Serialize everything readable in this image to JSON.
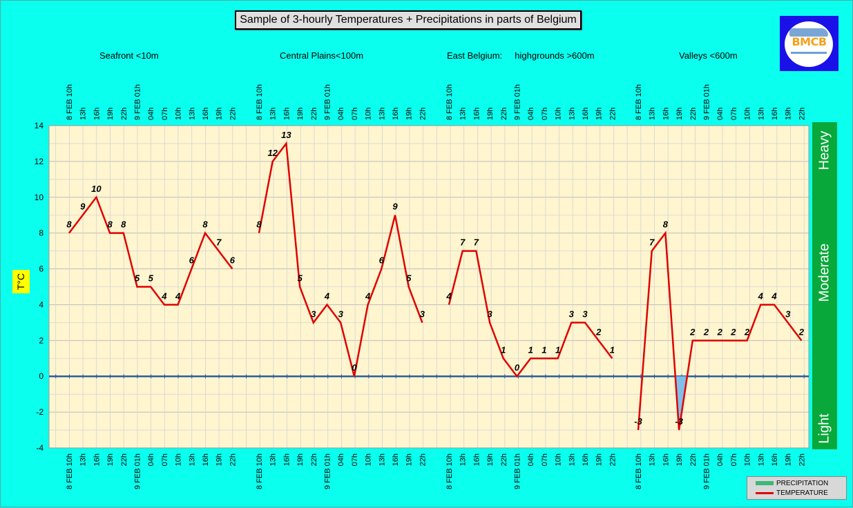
{
  "title": "Sample of 3-hourly Temperatures + Precipitations in parts of Belgium",
  "regions": [
    {
      "label": "Seafront <10m"
    },
    {
      "label": "Central Plains<100m"
    },
    {
      "label": "East Belgium:     highgrounds >600m"
    },
    {
      "label": "Valleys <600m"
    }
  ],
  "logo": {
    "text": "BMCB"
  },
  "precip_scale": {
    "heavy": "Heavy",
    "moderate": "Moderate",
    "light": "Light",
    "color": "#09A83A"
  },
  "legend": {
    "precipitation": "PRECIPITATION",
    "temperature": "TEMPERATURE",
    "precip_color": "#3CB878",
    "temp_color": "#E00000"
  },
  "chart_data": {
    "type": "line",
    "title": "Sample of 3-hourly Temperatures + Precipitations in parts of Belgium",
    "ylabel": "T°C",
    "xlabel": "",
    "ylim": [
      -4,
      14
    ],
    "yticks": [
      -4,
      -2,
      0,
      2,
      4,
      6,
      8,
      10,
      12,
      14
    ],
    "grid": true,
    "legend_position": "bottom-right",
    "series": [
      {
        "region": "Seafront <10m",
        "x": [
          "8 FEB 10h",
          "13h",
          "16h",
          "19h",
          "22h",
          "9 FEB 01h",
          "04h",
          "07h",
          "10h",
          "13h",
          "16h",
          "19h",
          "22h"
        ],
        "values": [
          8,
          9,
          10,
          8,
          8,
          5,
          5,
          4,
          4,
          6,
          8,
          7,
          6
        ]
      },
      {
        "region": "Central Plains<100m",
        "x": [
          "8 FEB 10h",
          "13h",
          "16h",
          "19h",
          "22h",
          "9 FEB 01h",
          "04h",
          "07h",
          "10h",
          "13h",
          "16h",
          "19h",
          "22h"
        ],
        "values": [
          8,
          12,
          13,
          5,
          3,
          4,
          3,
          0,
          4,
          6,
          9,
          5,
          3
        ]
      },
      {
        "region": "East Belgium: highgrounds >600m",
        "x": [
          "8 FEB 10h",
          "13h",
          "16h",
          "19h",
          "22h",
          "9 FEB 01h",
          "04h",
          "07h",
          "10h",
          "13h",
          "16h",
          "19h",
          "22h"
        ],
        "values": [
          4,
          7,
          7,
          3,
          1,
          0,
          1,
          1,
          1,
          3,
          3,
          2,
          1
        ]
      },
      {
        "region": "Valleys <600m",
        "x": [
          "8 FEB 10h",
          "13h",
          "16h",
          "19h",
          "22h",
          "9 FEB 01h",
          "04h",
          "07h",
          "10h",
          "13h",
          "16h",
          "19h",
          "22h"
        ],
        "values": [
          -3,
          7,
          8,
          -3,
          2,
          2,
          2,
          2,
          2,
          4,
          4,
          3,
          2
        ]
      }
    ]
  }
}
